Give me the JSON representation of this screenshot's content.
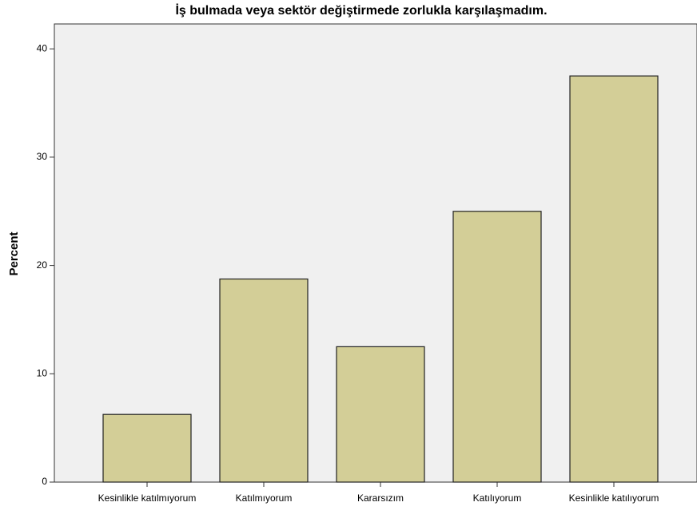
{
  "chart_data": {
    "type": "bar",
    "title": "İş bulmada veya sektör değiştirmede zorlukla karşılaşmadım.",
    "y_label": "Percent",
    "categories": [
      "Kesinlikle katılmıyorum",
      "Katılmıyorum",
      "Kararsızım",
      "Katılıyorum",
      "Kesinlikle katılıyorum"
    ],
    "values": [
      6.25,
      18.75,
      12.5,
      25,
      37.5
    ],
    "color": "#d3ce97",
    "ylim": [
      0,
      42.3
    ],
    "yticks": [
      0,
      10,
      20,
      30,
      40
    ],
    "grid": false
  }
}
